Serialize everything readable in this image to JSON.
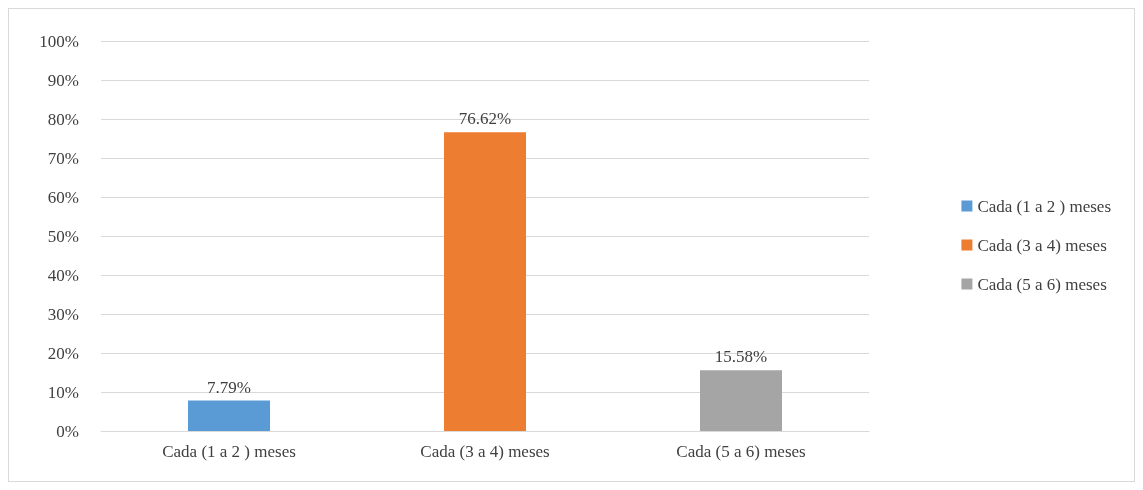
{
  "chart_data": {
    "type": "bar",
    "categories": [
      "Cada (1 a 2 ) meses",
      "Cada (3 a 4) meses",
      "Cada (5 a 6) meses"
    ],
    "series": [
      {
        "name": "Cada (1 a 2 ) meses",
        "color": "#5b9bd5",
        "values": [
          7.79,
          null,
          null
        ],
        "value_labels": [
          "7.79%",
          null,
          null
        ]
      },
      {
        "name": "Cada (3 a 4) meses",
        "color": "#ed7d31",
        "values": [
          null,
          76.62,
          null
        ],
        "value_labels": [
          null,
          "76.62%",
          null
        ]
      },
      {
        "name": "Cada (5 a 6) meses",
        "color": "#a5a5a5",
        "values": [
          null,
          null,
          15.58
        ],
        "value_labels": [
          null,
          null,
          "15.58%"
        ]
      }
    ],
    "ylim": [
      0,
      100
    ],
    "yticks": [
      {
        "value": 0,
        "label": "0%"
      },
      {
        "value": 10,
        "label": "10%"
      },
      {
        "value": 20,
        "label": "20%"
      },
      {
        "value": 30,
        "label": "30%"
      },
      {
        "value": 40,
        "label": "40%"
      },
      {
        "value": 50,
        "label": "50%"
      },
      {
        "value": 60,
        "label": "60%"
      },
      {
        "value": 70,
        "label": "70%"
      },
      {
        "value": 80,
        "label": "80%"
      },
      {
        "value": 90,
        "label": "90%"
      },
      {
        "value": 100,
        "label": "100%"
      }
    ],
    "grid": "y",
    "legend": "right"
  }
}
